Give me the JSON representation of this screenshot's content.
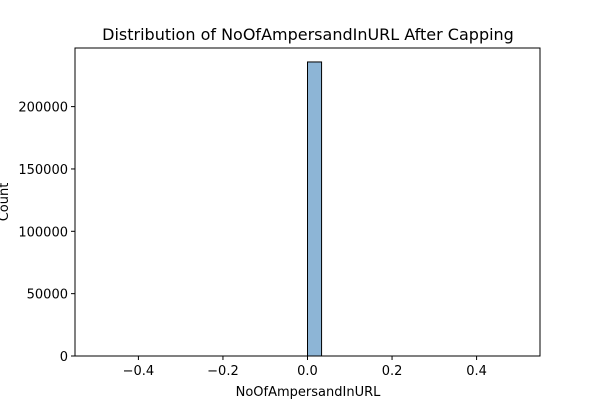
{
  "chart_data": {
    "type": "bar",
    "title": "Distribution of NoOfAmpersandInURL After Capping",
    "xlabel": "NoOfAmpersandInURL",
    "ylabel": "Count",
    "xlim": [
      -0.55,
      0.55
    ],
    "ylim": [
      0,
      247000
    ],
    "xticks": [
      -0.4,
      -0.2,
      0.0,
      0.2,
      0.4
    ],
    "xtick_labels": [
      "−0.4",
      "−0.2",
      "0.0",
      "0.2",
      "0.4"
    ],
    "yticks": [
      0,
      50000,
      100000,
      150000,
      200000
    ],
    "ytick_labels": [
      "0",
      "50000",
      "100000",
      "150000",
      "200000"
    ],
    "bins": [
      {
        "x0": 0.0,
        "x1": 0.0333,
        "count": 235800
      }
    ],
    "baseline_range": [
      -0.5,
      0.5
    ],
    "bar_color": "#8db5d6",
    "bar_edge_color": "#000000",
    "grid": false,
    "legend": "none"
  }
}
